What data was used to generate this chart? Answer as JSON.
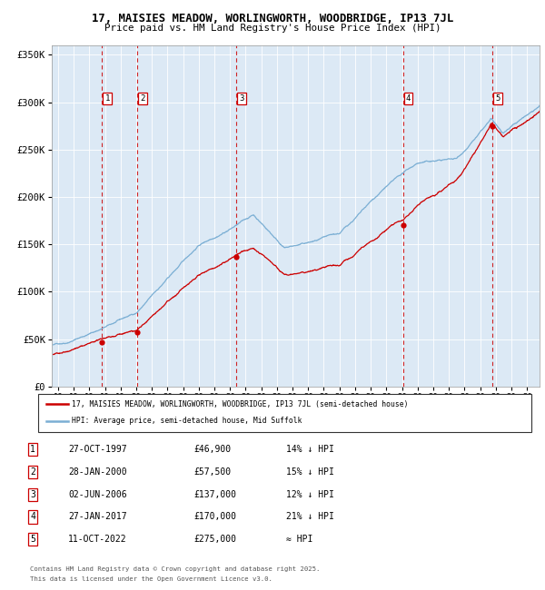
{
  "title_line1": "17, MAISIES MEADOW, WORLINGWORTH, WOODBRIDGE, IP13 7JL",
  "title_line2": "Price paid vs. HM Land Registry's House Price Index (HPI)",
  "bg_color": "#dce9f5",
  "red_line_color": "#cc0000",
  "blue_line_color": "#7bafd4",
  "sale_dates": [
    1997.82,
    2000.07,
    2006.42,
    2017.07,
    2022.78
  ],
  "sale_prices": [
    46900,
    57500,
    137000,
    170000,
    275000
  ],
  "sale_labels": [
    "1",
    "2",
    "3",
    "4",
    "5"
  ],
  "vline_color": "#cc0000",
  "ylim": [
    0,
    360000
  ],
  "xlim_start": 1994.6,
  "xlim_end": 2025.8,
  "yticks": [
    0,
    50000,
    100000,
    150000,
    200000,
    250000,
    300000,
    350000
  ],
  "ytick_labels": [
    "£0",
    "£50K",
    "£100K",
    "£150K",
    "£200K",
    "£250K",
    "£300K",
    "£350K"
  ],
  "xtick_years": [
    1995,
    1996,
    1997,
    1998,
    1999,
    2000,
    2001,
    2002,
    2003,
    2004,
    2005,
    2006,
    2007,
    2008,
    2009,
    2010,
    2011,
    2012,
    2013,
    2014,
    2015,
    2016,
    2017,
    2018,
    2019,
    2020,
    2021,
    2022,
    2023,
    2024,
    2025
  ],
  "legend_label_red": "17, MAISIES MEADOW, WORLINGWORTH, WOODBRIDGE, IP13 7JL (semi-detached house)",
  "legend_label_blue": "HPI: Average price, semi-detached house, Mid Suffolk",
  "table_rows": [
    [
      "1",
      "27-OCT-1997",
      "£46,900",
      "14% ↓ HPI"
    ],
    [
      "2",
      "28-JAN-2000",
      "£57,500",
      "15% ↓ HPI"
    ],
    [
      "3",
      "02-JUN-2006",
      "£137,000",
      "12% ↓ HPI"
    ],
    [
      "4",
      "27-JAN-2017",
      "£170,000",
      "21% ↓ HPI"
    ],
    [
      "5",
      "11-OCT-2022",
      "£275,000",
      "≈ HPI"
    ]
  ],
  "footnote_line1": "Contains HM Land Registry data © Crown copyright and database right 2025.",
  "footnote_line2": "This data is licensed under the Open Government Licence v3.0."
}
